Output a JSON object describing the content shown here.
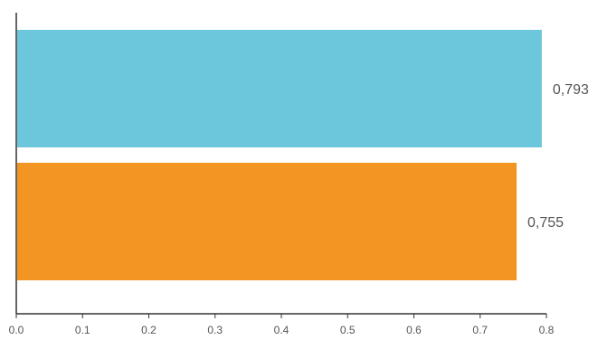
{
  "chart_data": {
    "type": "bar",
    "orientation": "horizontal",
    "values": [
      0.793,
      0.755
    ],
    "value_labels": [
      "0,793",
      "0,755"
    ],
    "colors": [
      "#6cc7dc",
      "#f29522"
    ],
    "xlim": [
      0.0,
      0.8
    ],
    "x_ticks": [
      0.0,
      0.1,
      0.2,
      0.3,
      0.4,
      0.5,
      0.6,
      0.7,
      0.8
    ],
    "x_tick_labels": [
      "0.0",
      "0.1",
      "0.2",
      "0.3",
      "0.4",
      "0.5",
      "0.6",
      "0.7",
      "0.8"
    ],
    "grid": false,
    "legend": "none"
  }
}
